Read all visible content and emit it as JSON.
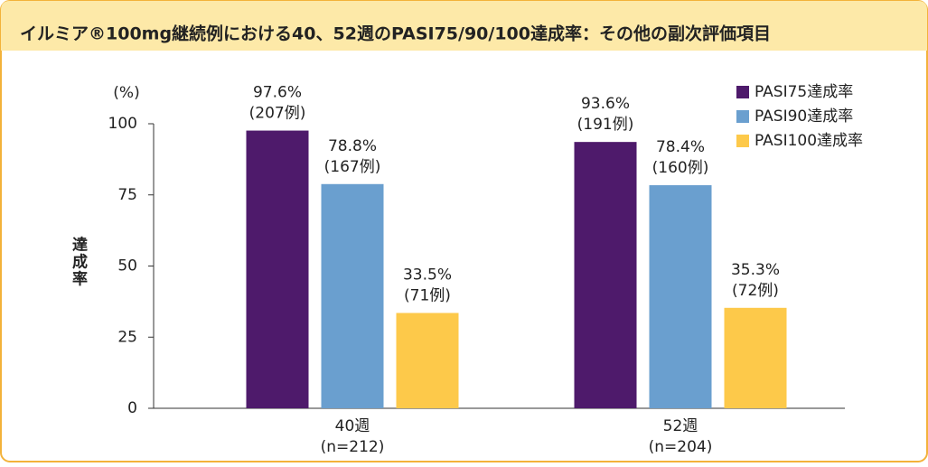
{
  "chart_data": {
    "type": "bar",
    "title": "イルミア®100mg継続例における40、52週のPASI75/90/100達成率：その他の副次評価項目",
    "y_unit": "(%)",
    "y_label": "達成率",
    "categories": [
      "40週",
      "52週"
    ],
    "category_sublabels": [
      "(n=212)",
      "(n=204)"
    ],
    "series": [
      {
        "name": "PASI75達成率",
        "color": "#4e1a6b",
        "values": [
          97.6,
          93.6
        ],
        "value_labels": [
          "97.6%",
          "93.6%"
        ],
        "value_sublabels": [
          "(207例)",
          "(191例)"
        ]
      },
      {
        "name": "PASI90達成率",
        "color": "#6a9fcf",
        "values": [
          78.8,
          78.4
        ],
        "value_labels": [
          "78.8%",
          "78.4%"
        ],
        "value_sublabels": [
          "(167例)",
          "(160例)"
        ]
      },
      {
        "name": "PASI100達成率",
        "color": "#fdc94a",
        "values": [
          33.5,
          35.3
        ],
        "value_labels": [
          "33.5%",
          "35.3%"
        ],
        "value_sublabels": [
          "(71例)",
          "(72例)"
        ]
      }
    ],
    "ylim": [
      0,
      100
    ],
    "yticks": [
      0,
      25,
      50,
      75,
      100
    ],
    "grid": false,
    "legend": "top-right"
  }
}
